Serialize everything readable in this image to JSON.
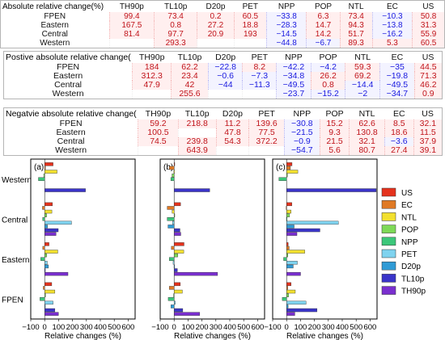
{
  "tables": [
    {
      "title": "Absolute relative change(%)",
      "columns": [
        "TH90p",
        "TL10p",
        "D20p",
        "PET",
        "NPP",
        "POP",
        "NTL",
        "EC",
        "US"
      ],
      "rows": [
        {
          "label": "FPEN",
          "values": [
            "99.4",
            "73.4",
            "0.2",
            "60.5",
            "−33.8",
            "6.3",
            "73.4",
            "−10.3",
            "50.8"
          ]
        },
        {
          "label": "Eastern",
          "values": [
            "167.5",
            "0.8",
            "27.2",
            "18.8",
            "−28.3",
            "14.7",
            "94.3",
            "−13.8",
            "31.3"
          ]
        },
        {
          "label": "Central",
          "values": [
            "81.4",
            "97.7",
            "20.9",
            "193",
            "−14.5",
            "14.2",
            "51.7",
            "−16.2",
            "55.9"
          ]
        },
        {
          "label": "Western",
          "values": [
            "",
            "293.3",
            "",
            "",
            "−44.8",
            "−6.7",
            "89.3",
            "5.3",
            "60.5"
          ]
        }
      ]
    },
    {
      "title": "Postive absolute relative change(",
      "columns": [
        "TH90p",
        "TL10p",
        "D20p",
        "PET",
        "NPP",
        "POP",
        "NTL",
        "EC",
        "US"
      ],
      "rows": [
        {
          "label": "FPEN",
          "values": [
            "184",
            "62.2",
            "−22.8",
            "8.2",
            "−42.2",
            "−4.2",
            "59.3",
            "−35",
            "44.5"
          ]
        },
        {
          "label": "Eastern",
          "values": [
            "312.3",
            "23.4",
            "−0.6",
            "−7.3",
            "−34.8",
            "26.2",
            "69.2",
            "−19.8",
            "71.3"
          ]
        },
        {
          "label": "Central",
          "values": [
            "47.9",
            "42",
            "−44",
            "−11.3",
            "−49.5",
            "0.8",
            "−14.4",
            "−49.5",
            "46.2"
          ]
        },
        {
          "label": "Western",
          "values": [
            "",
            "255.6",
            "",
            "",
            "−23.7",
            "−15.2",
            "−2",
            "−34.7",
            "0.9"
          ]
        }
      ]
    },
    {
      "title": "Negatvie absolute relative change(",
      "columns": [
        "TH90p",
        "TL10p",
        "D20p",
        "PET",
        "NPP",
        "POP",
        "NTL",
        "EC",
        "US"
      ],
      "rows": [
        {
          "label": "FPEN",
          "values": [
            "59.2",
            "218.8",
            "11.2",
            "139.6",
            "−30.8",
            "15.2",
            "62.6",
            "8.5",
            "32.1"
          ]
        },
        {
          "label": "Eastern",
          "values": [
            "100.5",
            "",
            "47.8",
            "77.5",
            "−21.5",
            "9.3",
            "130.8",
            "18.6",
            "11.5"
          ]
        },
        {
          "label": "Central",
          "values": [
            "74.5",
            "239.8",
            "54.3",
            "372.2",
            "−0.9",
            "21.5",
            "32.1",
            "−3.6",
            "37.9"
          ]
        },
        {
          "label": "Western",
          "values": [
            "",
            "643.9",
            "",
            "",
            "−54.7",
            "5.6",
            "80.7",
            "27.4",
            "39.1"
          ]
        }
      ]
    }
  ],
  "chart_data": {
    "type": "bar",
    "orientation": "horizontal",
    "xlabel": "Relative changes (%)",
    "xlim": [
      -100,
      650
    ],
    "xticks": [
      -100,
      0,
      100,
      200,
      300,
      400,
      500,
      600
    ],
    "categories": [
      "Western",
      "Central",
      "Eastern",
      "FPEN"
    ],
    "panel_labels": [
      "(a)",
      "(b)",
      "(c)"
    ],
    "series_order": [
      "US",
      "EC",
      "NTL",
      "POP",
      "NPP",
      "PET",
      "D20p",
      "TL10p",
      "TH90p"
    ],
    "legend": [
      {
        "name": "US",
        "color": "#e5321d"
      },
      {
        "name": "EC",
        "color": "#e07a25"
      },
      {
        "name": "NTL",
        "color": "#f2e02e"
      },
      {
        "name": "POP",
        "color": "#7ed957"
      },
      {
        "name": "NPP",
        "color": "#3cc77a"
      },
      {
        "name": "PET",
        "color": "#7fd3ef"
      },
      {
        "name": "D20p",
        "color": "#2f9bd6"
      },
      {
        "name": "TL10p",
        "color": "#3a34c9"
      },
      {
        "name": "TH90p",
        "color": "#7a2fcf"
      }
    ],
    "panels": [
      {
        "label": "(a)",
        "values": {
          "Western": [
            60.5,
            5.3,
            89.3,
            -6.7,
            -44.8,
            0,
            0,
            293.3,
            0
          ],
          "Central": [
            55.9,
            -16.2,
            51.7,
            14.2,
            -14.5,
            193,
            20.9,
            97.7,
            81.4
          ],
          "Eastern": [
            31.3,
            -13.8,
            94.3,
            14.7,
            -28.3,
            18.8,
            27.2,
            0.8,
            167.5
          ],
          "FPEN": [
            50.8,
            -10.3,
            73.4,
            6.3,
            -33.8,
            60.5,
            0.2,
            73.4,
            99.4
          ]
        }
      },
      {
        "label": "(b)",
        "values": {
          "Western": [
            0.9,
            -34.7,
            -2,
            -15.2,
            -23.7,
            0,
            0,
            255.6,
            0
          ],
          "Central": [
            46.2,
            -49.5,
            -14.4,
            0.8,
            -49.5,
            -11.3,
            -44,
            42,
            47.9
          ],
          "Eastern": [
            71.3,
            -19.8,
            69.2,
            26.2,
            -34.8,
            -7.3,
            -0.6,
            23.4,
            312.3
          ],
          "FPEN": [
            44.5,
            -35,
            59.3,
            -4.2,
            -42.2,
            8.2,
            -22.8,
            62.2,
            184
          ]
        }
      },
      {
        "label": "(c)",
        "values": {
          "Western": [
            39.1,
            27.4,
            80.7,
            5.6,
            -54.7,
            0,
            0,
            643.9,
            0
          ],
          "Central": [
            37.9,
            -3.6,
            32.1,
            21.5,
            -0.9,
            372.2,
            54.3,
            239.8,
            74.5
          ],
          "Eastern": [
            11.5,
            18.6,
            130.8,
            9.3,
            -21.5,
            77.5,
            47.8,
            0,
            100.5
          ],
          "FPEN": [
            32.1,
            8.5,
            62.6,
            15.2,
            -30.8,
            139.6,
            11.2,
            218.8,
            59.2
          ]
        }
      }
    ]
  }
}
